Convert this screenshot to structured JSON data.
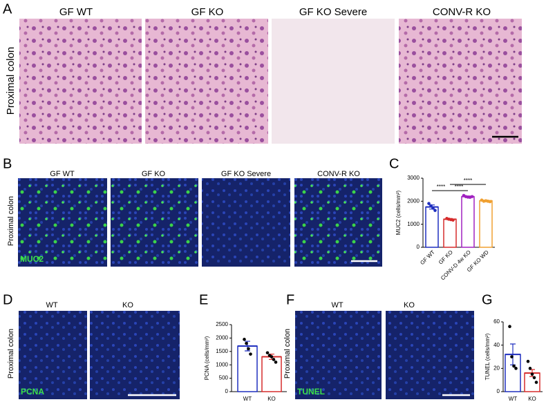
{
  "figure": {
    "A": {
      "label": "A",
      "row_label": "Proximal colon",
      "titles": [
        "GF WT",
        "GF KO",
        "GF KO Severe",
        "CONV-R  KO"
      ]
    },
    "B": {
      "label": "B",
      "row_label": "Proximal colon",
      "titles": [
        "GF WT",
        "GF KO",
        "GF KO Severe",
        "CONV-R  KO"
      ],
      "stain": "MUC2"
    },
    "D": {
      "label": "D",
      "row_label": "Proximal colon",
      "titles": [
        "WT",
        "KO"
      ],
      "stain": "PCNA"
    },
    "F": {
      "label": "F",
      "row_label": "Proximal colon",
      "titles": [
        "WT",
        "KO"
      ],
      "stain": "TUNEL"
    }
  },
  "chart_data": [
    {
      "type": "bar",
      "label": "C",
      "ylabel": "MUC2 (cells/mm²)",
      "categories": [
        "GF WT",
        "GF KO",
        "CONV-D 4w KO",
        "GF KO WD"
      ],
      "values": [
        1750,
        1220,
        2200,
        2020
      ],
      "errors": [
        90,
        30,
        30,
        30
      ],
      "points": [
        [
          1900,
          1800,
          1700,
          1600
        ],
        [
          1250,
          1220,
          1200,
          1180
        ],
        [
          2250,
          2200,
          2180,
          2170,
          2200
        ],
        [
          2050,
          2000,
          2020,
          2000,
          1980
        ]
      ],
      "colors": [
        "#1f2fbf",
        "#d62b2b",
        "#a020c0",
        "#f0a030"
      ],
      "ylim": [
        0,
        3000
      ],
      "yticks": [
        0,
        1000,
        2000,
        3000
      ],
      "significance": [
        "****",
        "****",
        "****"
      ]
    },
    {
      "type": "bar",
      "label": "E",
      "ylabel": "PCNA (cells/mm²)",
      "categories": [
        "WT",
        "KO"
      ],
      "values": [
        1700,
        1300
      ],
      "errors": [
        180,
        100
      ],
      "points": [
        [
          1950,
          1800,
          1600,
          1400
        ],
        [
          1450,
          1350,
          1300,
          1200,
          1100
        ]
      ],
      "colors": [
        "#1f2fbf",
        "#d62b2b"
      ],
      "ylim": [
        0,
        2500
      ],
      "yticks": [
        0,
        500,
        1000,
        1500,
        2000,
        2500
      ]
    },
    {
      "type": "bar",
      "label": "G",
      "ylabel": "TUNEL (cells/mm²)",
      "categories": [
        "WT",
        "KO"
      ],
      "values": [
        32,
        16
      ],
      "errors": [
        9,
        3
      ],
      "points": [
        [
          56,
          30,
          22,
          20
        ],
        [
          26,
          20,
          15,
          12,
          8
        ]
      ],
      "colors": [
        "#1f2fbf",
        "#d62b2b"
      ],
      "ylim": [
        0,
        60
      ],
      "yticks": [
        0,
        20,
        40,
        60
      ]
    }
  ]
}
